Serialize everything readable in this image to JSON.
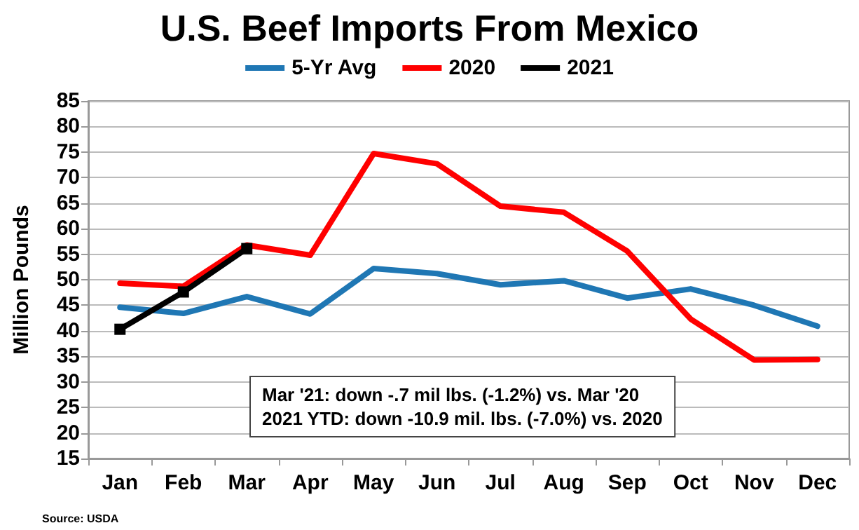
{
  "chart_data": {
    "type": "line",
    "title": "U.S. Beef Imports From Mexico",
    "ylabel": "Million Pounds",
    "categories": [
      "Jan",
      "Feb",
      "Mar",
      "Apr",
      "May",
      "Jun",
      "Jul",
      "Aug",
      "Sep",
      "Oct",
      "Nov",
      "Dec"
    ],
    "series": [
      {
        "name": "5-Yr Avg",
        "color": "#1f77b4",
        "marker": "none",
        "values": [
          44.6,
          43.4,
          46.7,
          43.3,
          52.2,
          51.2,
          49.0,
          49.8,
          46.4,
          48.2,
          45.0,
          40.9
        ]
      },
      {
        "name": "2020",
        "color": "#ff0000",
        "marker": "none",
        "values": [
          49.3,
          48.7,
          56.8,
          54.8,
          74.7,
          72.7,
          64.4,
          63.2,
          55.6,
          42.3,
          34.3,
          34.4
        ]
      },
      {
        "name": "2021",
        "color": "#000000",
        "marker": "square",
        "values": [
          40.3,
          47.6,
          56.1,
          null,
          null,
          null,
          null,
          null,
          null,
          null,
          null,
          null
        ]
      }
    ],
    "ylim": [
      15,
      85
    ],
    "yticks": [
      15,
      20,
      25,
      30,
      35,
      40,
      45,
      50,
      55,
      60,
      65,
      70,
      75,
      80,
      85
    ],
    "grid": "y",
    "legend": "top",
    "line_style": "solid",
    "annotations": [
      "Mar '21: down -.7 mil lbs. (-1.2%) vs. Mar '20\n2021 YTD: down -10.9 mil. lbs. (-7.0%) vs. 2020",
      "Source: USDA"
    ]
  }
}
